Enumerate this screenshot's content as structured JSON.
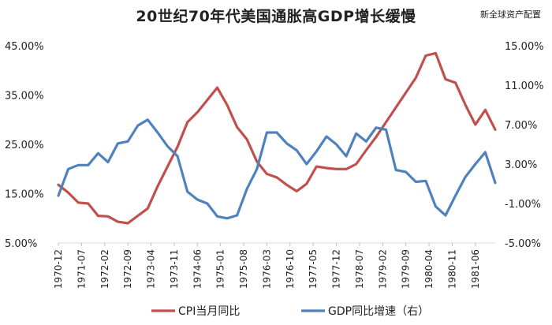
{
  "chart_data": {
    "type": "line",
    "title": "20世纪70年代美国通胀高GDP增长缓慢",
    "source": "新全球资产配置",
    "x_ticks": [
      "1970-12",
      "1971-07",
      "1972-02",
      "1972-09",
      "1973-04",
      "1973-11",
      "1974-06",
      "1975-01",
      "1975-08",
      "1976-03",
      "1976-10",
      "1977-05",
      "1977-12",
      "1978-07",
      "1979-02",
      "1979-09",
      "1980-04",
      "1980-11",
      "1981-06"
    ],
    "y_left": {
      "ticks": [
        "5.00%",
        "15.00%",
        "25.00%",
        "35.00%",
        "45.00%"
      ],
      "ylim": [
        5,
        45
      ]
    },
    "y_right": {
      "ticks": [
        "-5.00%",
        "-1.00%",
        "3.00%",
        "7.00%",
        "11.00%",
        "15.00%"
      ],
      "ylim": [
        -5,
        15
      ]
    },
    "x_range": [
      0,
      44
    ],
    "series": [
      {
        "name": "CPI当月同比",
        "axis": "left",
        "color": "#c0504d",
        "x": [
          0,
          1,
          2,
          3,
          4,
          5,
          6,
          7,
          8,
          9,
          10,
          11,
          12,
          13,
          14,
          15,
          16,
          17,
          18,
          19,
          20,
          21,
          22,
          23,
          24,
          25,
          26,
          27,
          28,
          29,
          30,
          31,
          32,
          33,
          34,
          35,
          36,
          37,
          38,
          39,
          40,
          41,
          42,
          43,
          44
        ],
        "values": [
          16.8,
          15.2,
          13.2,
          13.0,
          10.5,
          10.4,
          9.3,
          9.0,
          10.5,
          12.0,
          16.5,
          20.5,
          24.5,
          29.5,
          31.5,
          34.0,
          36.5,
          33.0,
          28.5,
          26.0,
          21.5,
          19.0,
          18.3,
          16.8,
          15.5,
          17.0,
          20.5,
          20.2,
          20.0,
          20.0,
          21.0,
          23.8,
          26.5,
          29.5,
          32.5,
          35.5,
          38.5,
          43.0,
          43.5,
          38.2,
          37.5,
          33.0,
          29.0,
          32.0,
          28.0
        ]
      },
      {
        "name": "GDP同比增速（右）",
        "axis": "right",
        "color": "#4f81bd",
        "x": [
          0,
          1,
          2,
          3,
          4,
          5,
          6,
          7,
          8,
          9,
          10,
          11,
          12,
          13,
          14,
          15,
          16,
          17,
          18,
          19,
          20,
          21,
          22,
          23,
          24,
          25,
          26,
          27,
          28,
          29,
          30,
          31,
          32,
          33,
          34,
          35,
          36,
          37,
          38,
          39,
          40,
          41,
          42,
          43,
          44
        ],
        "values": [
          -0.2,
          2.5,
          2.9,
          2.9,
          4.1,
          3.2,
          5.1,
          5.3,
          6.9,
          7.5,
          6.2,
          4.8,
          3.8,
          0.2,
          -0.6,
          -1.0,
          -2.3,
          -2.5,
          -2.2,
          0.5,
          2.5,
          6.2,
          6.2,
          5.1,
          4.4,
          3.0,
          4.3,
          5.8,
          5.0,
          3.8,
          6.1,
          5.3,
          6.7,
          6.5,
          2.4,
          2.2,
          1.2,
          1.3,
          -1.3,
          -2.2,
          -0.2,
          1.7,
          3.0,
          4.2,
          1.1
        ]
      }
    ],
    "legend_position": "bottom",
    "grid": false
  }
}
